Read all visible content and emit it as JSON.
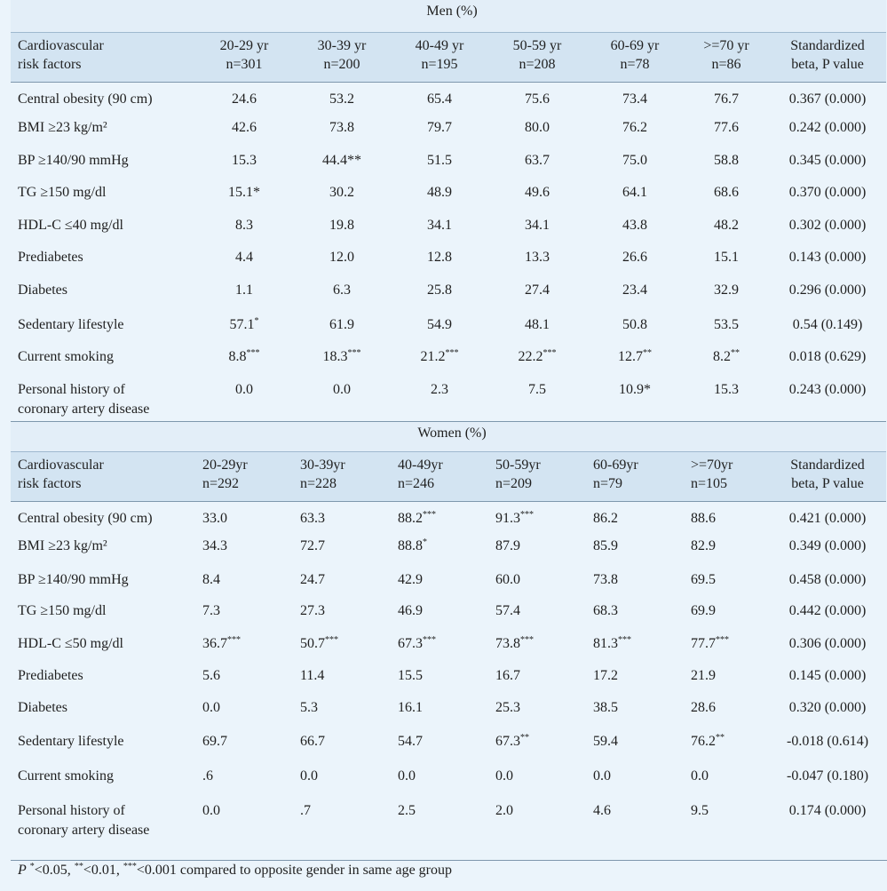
{
  "sections": [
    {
      "title": "Men (%)",
      "headers": {
        "factor": [
          "Cardiovascular",
          "risk factors"
        ],
        "groups": [
          [
            "20-29 yr",
            "n=301"
          ],
          [
            "30-39 yr",
            "n=200"
          ],
          [
            "40-49 yr",
            "n=195"
          ],
          [
            "50-59 yr",
            "n=208"
          ],
          [
            "60-69 yr",
            "n=78"
          ],
          [
            ">=70 yr",
            "n=86"
          ]
        ],
        "beta": [
          "Standardized",
          "beta, P value"
        ]
      },
      "rows": [
        {
          "label": [
            "Central obesity (90 cm)"
          ],
          "values": [
            "24.6",
            "53.2",
            "65.4",
            "75.6",
            "73.4",
            "76.7"
          ],
          "marks": [
            "",
            "",
            "",
            "",
            "",
            ""
          ],
          "beta": "0.367 (0.000)"
        },
        {
          "label": [
            "BMI ≥23 kg/m²"
          ],
          "values": [
            "42.6",
            "73.8",
            "79.7",
            "80.0",
            "76.2",
            "77.6"
          ],
          "marks": [
            "",
            "",
            "",
            "",
            "",
            ""
          ],
          "beta": "0.242 (0.000)"
        },
        {
          "label": [
            "BP ≥140/90 mmHg"
          ],
          "values": [
            "15.3",
            "44.4**",
            "51.5",
            "63.7",
            "75.0",
            "58.8"
          ],
          "marks": [
            "",
            "",
            "",
            "",
            "",
            ""
          ],
          "beta": "0.345 (0.000)"
        },
        {
          "label": [
            "TG ≥150 mg/dl"
          ],
          "values": [
            "15.1*",
            "30.2",
            "48.9",
            "49.6",
            "64.1",
            "68.6"
          ],
          "marks": [
            "",
            "",
            "",
            "",
            "",
            ""
          ],
          "beta": "0.370 (0.000)"
        },
        {
          "label": [
            "HDL-C ≤40 mg/dl"
          ],
          "values": [
            "8.3",
            "19.8",
            "34.1",
            "34.1",
            "43.8",
            "48.2"
          ],
          "marks": [
            "",
            "",
            "",
            "",
            "",
            ""
          ],
          "beta": "0.302 (0.000)"
        },
        {
          "label": [
            "Prediabetes"
          ],
          "values": [
            "4.4",
            "12.0",
            "12.8",
            "13.3",
            "26.6",
            "15.1"
          ],
          "marks": [
            "",
            "",
            "",
            "",
            "",
            ""
          ],
          "beta": "0.143 (0.000)"
        },
        {
          "label": [
            "Diabetes"
          ],
          "values": [
            "1.1",
            "6.3",
            "25.8",
            "27.4",
            "23.4",
            "32.9"
          ],
          "marks": [
            "",
            "",
            "",
            "",
            "",
            ""
          ],
          "beta": "0.296 (0.000)"
        },
        {
          "label": [
            "Sedentary lifestyle"
          ],
          "values": [
            "57.1",
            "61.9",
            "54.9",
            "48.1",
            "50.8",
            "53.5"
          ],
          "marks": [
            "*",
            "",
            "",
            "",
            "",
            ""
          ],
          "beta": "0.54 (0.149)"
        },
        {
          "label": [
            "Current smoking"
          ],
          "values": [
            "8.8",
            "18.3",
            "21.2",
            "22.2",
            "12.7",
            "8.2"
          ],
          "marks": [
            "***",
            "***",
            "***",
            "***",
            "**",
            "**"
          ],
          "beta": "0.018 (0.629)"
        },
        {
          "label": [
            "Personal history of",
            "coronary artery disease"
          ],
          "values": [
            "0.0",
            "0.0",
            "2.3",
            "7.5",
            "10.9*",
            "15.3"
          ],
          "marks": [
            "",
            "",
            "",
            "",
            "",
            ""
          ],
          "beta": "0.243 (0.000)"
        }
      ]
    },
    {
      "title": "Women (%)",
      "headers": {
        "factor": [
          "Cardiovascular",
          "risk factors"
        ],
        "groups": [
          [
            "20-29yr",
            "n=292"
          ],
          [
            "30-39yr",
            "n=228"
          ],
          [
            "40-49yr",
            "n=246"
          ],
          [
            "50-59yr",
            "n=209"
          ],
          [
            "60-69yr",
            "n=79"
          ],
          [
            ">=70yr",
            "n=105"
          ]
        ],
        "beta": [
          "Standardized",
          "beta, P value"
        ]
      },
      "rows": [
        {
          "label": [
            "Central obesity (90 cm)"
          ],
          "values": [
            "33.0",
            "63.3",
            "88.2",
            "91.3",
            "86.2",
            "88.6"
          ],
          "marks": [
            "",
            "",
            "***",
            "***",
            "",
            ""
          ],
          "beta": "0.421 (0.000)"
        },
        {
          "label": [
            "BMI ≥23 kg/m²"
          ],
          "values": [
            "34.3",
            "72.7",
            "88.8",
            "87.9",
            "85.9",
            "82.9"
          ],
          "marks": [
            "",
            "",
            "*",
            "",
            "",
            ""
          ],
          "beta": "0.349 (0.000)"
        },
        {
          "label": [
            "BP ≥140/90 mmHg"
          ],
          "values": [
            "8.4",
            "24.7",
            "42.9",
            "60.0",
            "73.8",
            "69.5"
          ],
          "marks": [
            "",
            "",
            "",
            "",
            "",
            ""
          ],
          "beta": "0.458 (0.000)"
        },
        {
          "label": [
            "TG ≥150 mg/dl"
          ],
          "values": [
            "7.3",
            "27.3",
            "46.9",
            "57.4",
            "68.3",
            "69.9"
          ],
          "marks": [
            "",
            "",
            "",
            "",
            "",
            ""
          ],
          "beta": "0.442 (0.000)"
        },
        {
          "label": [
            "HDL-C ≤50 mg/dl"
          ],
          "values": [
            "36.7",
            "50.7",
            "67.3",
            "73.8",
            "81.3",
            "77.7"
          ],
          "marks": [
            "***",
            "***",
            "***",
            "***",
            "***",
            "***"
          ],
          "beta": "0.306 (0.000)"
        },
        {
          "label": [
            "Prediabetes"
          ],
          "values": [
            "5.6",
            "11.4",
            "15.5",
            "16.7",
            "17.2",
            "21.9"
          ],
          "marks": [
            "",
            "",
            "",
            "",
            "",
            ""
          ],
          "beta": "0.145 (0.000)"
        },
        {
          "label": [
            "Diabetes"
          ],
          "values": [
            "0.0",
            "5.3",
            "16.1",
            "25.3",
            "38.5",
            "28.6"
          ],
          "marks": [
            "",
            "",
            "",
            "",
            "",
            ""
          ],
          "beta": "0.320 (0.000)"
        },
        {
          "label": [
            "Sedentary lifestyle"
          ],
          "values": [
            "69.7",
            "66.7",
            "54.7",
            "67.3",
            "59.4",
            "76.2"
          ],
          "marks": [
            "",
            "",
            "",
            "**",
            "",
            "**"
          ],
          "beta": "-0.018 (0.614)"
        },
        {
          "label": [
            "Current smoking"
          ],
          "values": [
            ".6",
            "0.0",
            "0.0",
            "0.0",
            "0.0",
            "0.0"
          ],
          "marks": [
            "",
            "",
            "",
            "",
            "",
            ""
          ],
          "beta": "-0.047 (0.180)"
        },
        {
          "label": [
            "Personal history of",
            "coronary artery disease"
          ],
          "values": [
            "0.0",
            ".7",
            "2.5",
            "2.0",
            "4.6",
            "9.5"
          ],
          "marks": [
            "",
            "",
            "",
            "",
            "",
            ""
          ],
          "beta": "0.174 (0.000)"
        }
      ]
    }
  ],
  "footnote": {
    "p": "P",
    "m1": "*",
    "t1": "<0.05, ",
    "m2": "**",
    "t2": "<0.01, ",
    "m3": "***",
    "t3": "<0.001 compared to opposite gender in same age group"
  }
}
